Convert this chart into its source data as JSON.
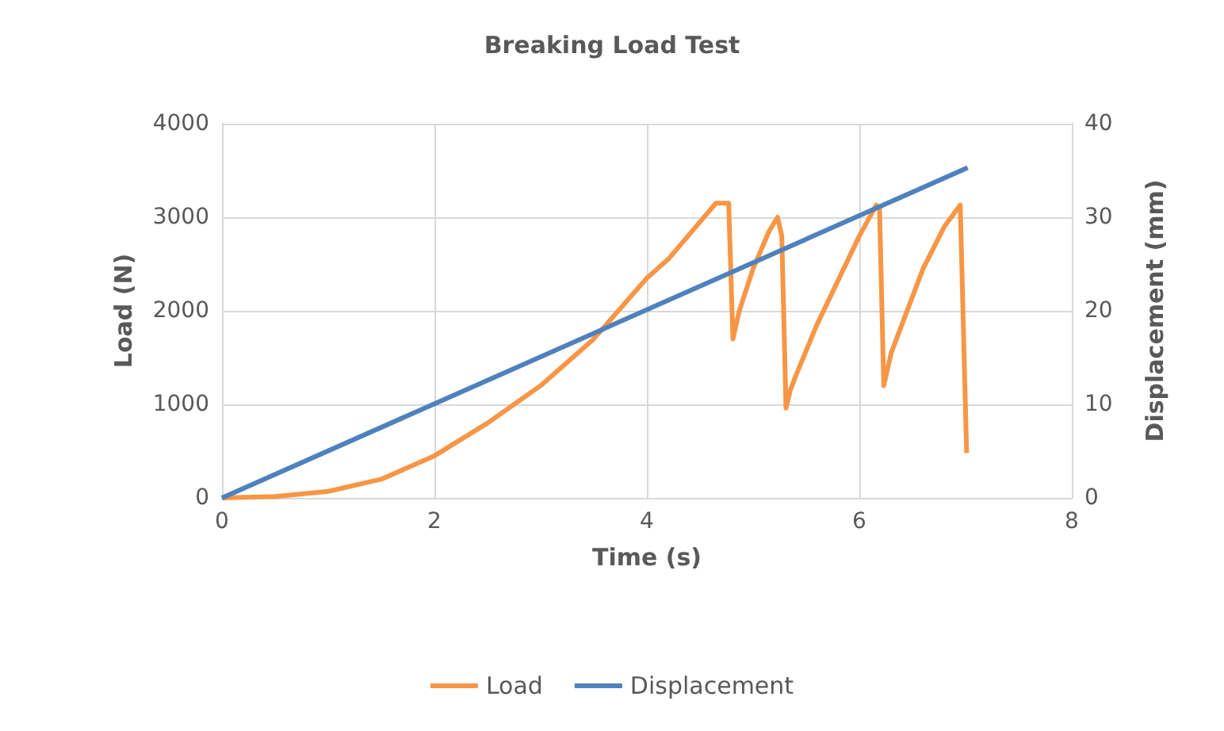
{
  "chart_data": {
    "type": "line",
    "title": "Breaking Load Test",
    "xlabel": "Time (s)",
    "ylabel": "Load (N)",
    "y2label": "Displacement (mm)",
    "xlim": [
      0,
      8
    ],
    "xticks": [
      0,
      2,
      4,
      6,
      8
    ],
    "ylim": [
      0,
      4000
    ],
    "yticks": [
      0,
      1000,
      2000,
      3000,
      4000
    ],
    "y2lim": [
      0,
      40
    ],
    "y2ticks": [
      0,
      10,
      20,
      30,
      40
    ],
    "grid": true,
    "legend": "bottom",
    "marker": "none",
    "line_style": "solid",
    "series": [
      {
        "name": "Load",
        "color": "#f79646",
        "x": [
          0,
          0.5,
          1,
          1.5,
          2,
          2.5,
          3,
          3.5,
          4,
          4.2,
          4.5,
          4.65,
          4.77,
          4.81,
          4.87,
          5,
          5.15,
          5.23,
          5.27,
          5.31,
          5.35,
          5.4,
          5.6,
          6,
          6.16,
          6.19,
          6.23,
          6.27,
          6.3,
          6.6,
          6.8,
          6.95,
          7.01
        ],
        "values": [
          0,
          15,
          70,
          200,
          450,
          800,
          1200,
          1700,
          2350,
          2550,
          2950,
          3150,
          3150,
          1700,
          2000,
          2450,
          2850,
          3000,
          2800,
          960,
          1150,
          1300,
          1850,
          2800,
          3130,
          3100,
          1200,
          1400,
          1550,
          2450,
          2900,
          3130,
          480
        ]
      },
      {
        "name": "Displacement",
        "color": "#4f81bd",
        "axis": "y2",
        "x": [
          0,
          7.02
        ],
        "values": [
          0,
          35.3
        ]
      }
    ]
  }
}
